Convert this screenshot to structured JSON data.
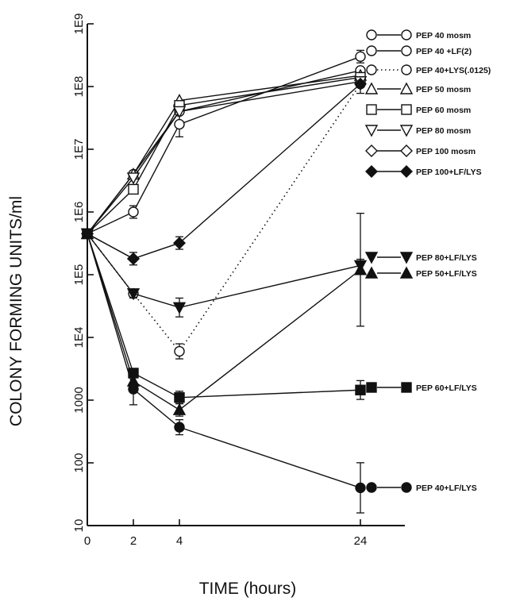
{
  "chart_data": {
    "type": "line",
    "title": "",
    "xlabel": "TIME (hours)",
    "ylabel": "COLONY FORMING UNITS/ml",
    "yscale": "log",
    "ylim": [
      10,
      1000000000
    ],
    "x_ticks": [
      {
        "value": 0,
        "label": "0"
      },
      {
        "value": 2,
        "label": "2"
      },
      {
        "value": 4,
        "label": "4"
      },
      {
        "value": 24,
        "label": "24"
      }
    ],
    "y_ticks": [
      {
        "value": 10,
        "label": "10"
      },
      {
        "value": 100,
        "label": "100"
      },
      {
        "value": 1000,
        "label": "1000"
      },
      {
        "value": 10000,
        "label": "1E4"
      },
      {
        "value": 100000,
        "label": "1E5"
      },
      {
        "value": 1000000,
        "label": "1E6"
      },
      {
        "value": 10000000,
        "label": "1E7"
      },
      {
        "value": 100000000,
        "label": "1E8"
      },
      {
        "value": 1000000000,
        "label": "1E9"
      }
    ],
    "x_axis_break": "between 4 and 24",
    "grid": false,
    "legend_placement": "right",
    "series": [
      {
        "name": "PEP 40 mosm",
        "marker": "circle-open",
        "line": "solid",
        "x": [
          0,
          2,
          4,
          24
        ],
        "y": [
          450000,
          1000000,
          25000000,
          300000000
        ],
        "err": [
          null,
          0.1,
          0.2,
          0.1
        ]
      },
      {
        "name": "PEP 40 +LF(2)",
        "marker": "circle-open",
        "line": "solid",
        "x": [
          0,
          2,
          4,
          24
        ],
        "y": [
          450000,
          4000000,
          40000000,
          180000000
        ],
        "err": [
          null,
          null,
          null,
          null
        ]
      },
      {
        "name": "PEP 40+LYS(.0125)",
        "marker": "circle-open",
        "line": "dotted",
        "x": [
          0,
          2,
          4,
          24
        ],
        "y": [
          450000,
          50000,
          6000,
          110000000
        ],
        "err": [
          null,
          null,
          0.12,
          0.15
        ]
      },
      {
        "name": "PEP 50 mosm",
        "marker": "triangle-up-open",
        "line": "solid",
        "x": [
          0,
          2,
          4,
          24
        ],
        "y": [
          450000,
          4000000,
          60000000,
          150000000
        ],
        "err": [
          null,
          null,
          null,
          null
        ]
      },
      {
        "name": "PEP 60 mosm",
        "marker": "square-open",
        "line": "solid",
        "x": [
          0,
          2,
          4,
          24
        ],
        "y": [
          450000,
          2300000,
          50000000,
          140000000
        ],
        "err": [
          null,
          null,
          null,
          null
        ]
      },
      {
        "name": "PEP 80 mosm",
        "marker": "triangle-down-open",
        "line": "solid",
        "x": [
          0,
          2,
          4,
          24
        ],
        "y": [
          450000,
          3500000,
          40000000,
          120000000
        ],
        "err": [
          null,
          null,
          null,
          null
        ]
      },
      {
        "name": "PEP 100 mosm",
        "marker": "diamond-open",
        "line": "solid",
        "x": [
          0,
          2,
          4,
          24
        ],
        "y": [
          450000,
          180000,
          null,
          null
        ],
        "err": [
          null,
          0.1,
          null,
          null
        ]
      },
      {
        "name": "PEP 100+LF/LYS",
        "marker": "diamond-filled",
        "line": "solid",
        "x": [
          0,
          2,
          4,
          24
        ],
        "y": [
          450000,
          180000,
          320000,
          110000000
        ],
        "err": [
          null,
          null,
          0.1,
          null
        ]
      },
      {
        "name": "PEP 80+LF/LYS",
        "marker": "triangle-down-filled",
        "line": "solid",
        "x": [
          0,
          2,
          4,
          24
        ],
        "y": [
          450000,
          50000,
          30000,
          140000
        ],
        "err": [
          null,
          0.07,
          0.15,
          0.1
        ]
      },
      {
        "name": "PEP 50+LF/LYS",
        "marker": "triangle-up-filled",
        "line": "solid",
        "x": [
          0,
          2,
          4,
          24
        ],
        "y": [
          450000,
          2000,
          700,
          120000
        ],
        "err": [
          null,
          null,
          0.1,
          0.9
        ]
      },
      {
        "name": "PEP 60+LF/LYS",
        "marker": "square-filled",
        "line": "solid",
        "x": [
          0,
          2,
          4,
          24
        ],
        "y": [
          450000,
          2700,
          1100,
          1450
        ],
        "err": [
          null,
          null,
          0.1,
          0.15
        ]
      },
      {
        "name": "PEP 40+LF/LYS",
        "marker": "circle-filled",
        "line": "solid",
        "x": [
          0,
          2,
          4,
          24
        ],
        "y": [
          450000,
          1500,
          370,
          40
        ],
        "err": [
          null,
          0.25,
          0.12,
          0.4
        ]
      }
    ]
  }
}
